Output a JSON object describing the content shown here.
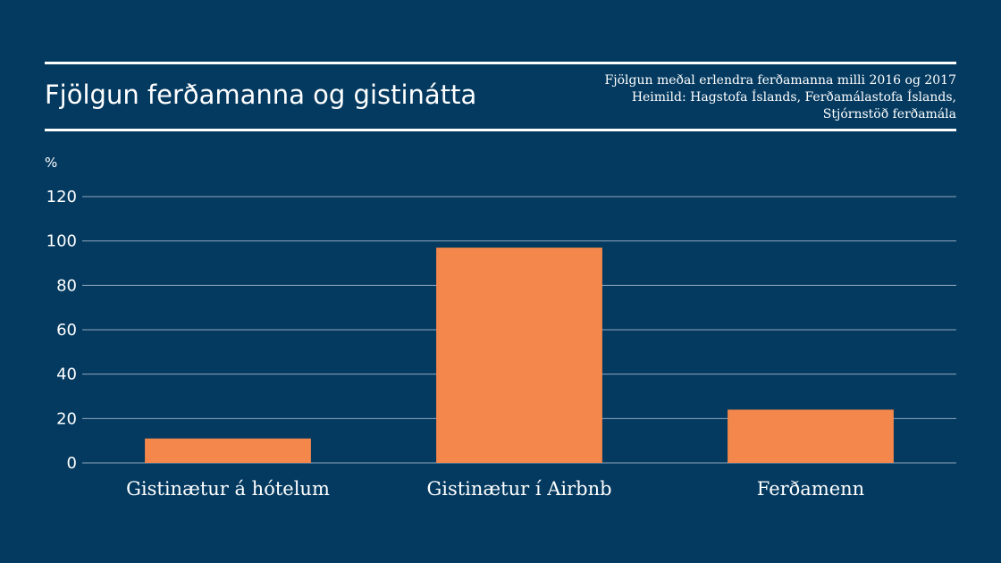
{
  "header": {
    "title": "Fjölgun ferðamanna og gistinátta",
    "subtitle_lines": [
      "Fjölgun meðal erlendra ferðamanna milli 2016 og 2017",
      "Heimild: Hagstofa Íslands, Ferðamálastofa Íslands,",
      "Stjórnstöð ferðamála"
    ]
  },
  "colors": {
    "background": "#043a60",
    "bar": "#f4874b",
    "grid": "#8fa6bd",
    "text": "#ffffff"
  },
  "chart_data": {
    "type": "bar",
    "title": "Fjölgun ferðamanna og gistinátta",
    "ylabel": "%",
    "categories": [
      "Gistinætur á hótelum",
      "Gistinætur í Airbnb",
      "Ferðamenn"
    ],
    "values": [
      11,
      97,
      24
    ],
    "ylim": [
      0,
      120
    ],
    "yticks": [
      0,
      20,
      40,
      60,
      80,
      100,
      120
    ],
    "grid": true
  }
}
